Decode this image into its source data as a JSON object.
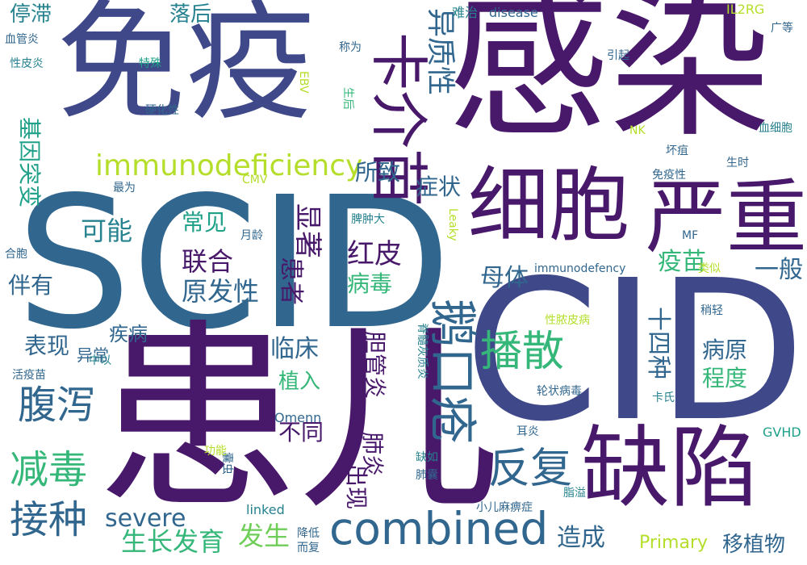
{
  "palette": {
    "dark_purple": "#48186a",
    "indigo": "#3f4889",
    "blue": "#31668e",
    "teal": "#26828e",
    "green_teal": "#1fa088",
    "green": "#35b779",
    "lime": "#6ece58",
    "yellow_green": "#b5de2b"
  },
  "words": [
    {
      "text": "感染"
    },
    {
      "text": "免疫"
    },
    {
      "text": "SCID"
    },
    {
      "text": "CID"
    },
    {
      "text": "患儿"
    },
    {
      "text": "缺陷"
    },
    {
      "text": "细胞"
    },
    {
      "text": "严重"
    },
    {
      "text": "卡介苗"
    },
    {
      "text": "combined"
    },
    {
      "text": "鹅口疮"
    },
    {
      "text": "播散"
    },
    {
      "text": "immunodeficiency"
    },
    {
      "text": "腹泻"
    },
    {
      "text": "减毒"
    },
    {
      "text": "接种"
    },
    {
      "text": "反复"
    },
    {
      "text": "异质性"
    },
    {
      "text": "停滞"
    },
    {
      "text": "落后"
    },
    {
      "text": "基因突变"
    },
    {
      "text": "所致"
    },
    {
      "text": "症状"
    },
    {
      "text": "可能"
    },
    {
      "text": "常见"
    },
    {
      "text": "显著"
    },
    {
      "text": "联合"
    },
    {
      "text": "原发性"
    },
    {
      "text": "红皮"
    },
    {
      "text": "病毒"
    },
    {
      "text": "患者"
    },
    {
      "text": "疫苗"
    },
    {
      "text": "一般"
    },
    {
      "text": "母体"
    },
    {
      "text": "伴有"
    },
    {
      "text": "表现"
    },
    {
      "text": "临床"
    },
    {
      "text": "胆管炎"
    },
    {
      "text": "十四种"
    },
    {
      "text": "病原"
    },
    {
      "text": "程度"
    },
    {
      "text": "植入"
    },
    {
      "text": "疾病"
    },
    {
      "text": "异常"
    },
    {
      "text": "不同"
    },
    {
      "text": "肺炎"
    },
    {
      "text": "出现"
    },
    {
      "text": "severe"
    },
    {
      "text": "生长发育"
    },
    {
      "text": "发生"
    },
    {
      "text": "造成"
    },
    {
      "text": "移植物"
    },
    {
      "text": "Primary"
    },
    {
      "text": "linked"
    },
    {
      "text": "Omenn"
    },
    {
      "text": "GVHD"
    },
    {
      "text": "disease"
    },
    {
      "text": "难治"
    },
    {
      "text": "IL2RG"
    },
    {
      "text": "广等"
    },
    {
      "text": "血管炎"
    },
    {
      "text": "称为"
    },
    {
      "text": "性皮炎"
    },
    {
      "text": "特殊"
    },
    {
      "text": "EBV"
    },
    {
      "text": "生后"
    },
    {
      "text": "引起"
    },
    {
      "text": "硬化性"
    },
    {
      "text": "NK"
    },
    {
      "text": "血细胞"
    },
    {
      "text": "坏疽"
    },
    {
      "text": "生时"
    },
    {
      "text": "免疫性"
    },
    {
      "text": "CMV"
    },
    {
      "text": "最为"
    },
    {
      "text": "脾肿大"
    },
    {
      "text": "月龄"
    },
    {
      "text": "Leaky"
    },
    {
      "text": "MF"
    },
    {
      "text": "合胞"
    },
    {
      "text": "immunodefency"
    },
    {
      "text": "类似"
    },
    {
      "text": "性脓皮病"
    },
    {
      "text": "稍轻"
    },
    {
      "text": "中以"
    },
    {
      "text": "活疫苗"
    },
    {
      "text": "脊髓灰质炎"
    },
    {
      "text": "轮状病毒"
    },
    {
      "text": "卡氏"
    },
    {
      "text": "耳炎"
    },
    {
      "text": "缺如"
    },
    {
      "text": "肺囊"
    },
    {
      "text": "囊虫"
    },
    {
      "text": "功能"
    },
    {
      "text": "小儿麻痹症"
    },
    {
      "text": "脂溢"
    },
    {
      "text": "降低"
    },
    {
      "text": "而复"
    }
  ]
}
